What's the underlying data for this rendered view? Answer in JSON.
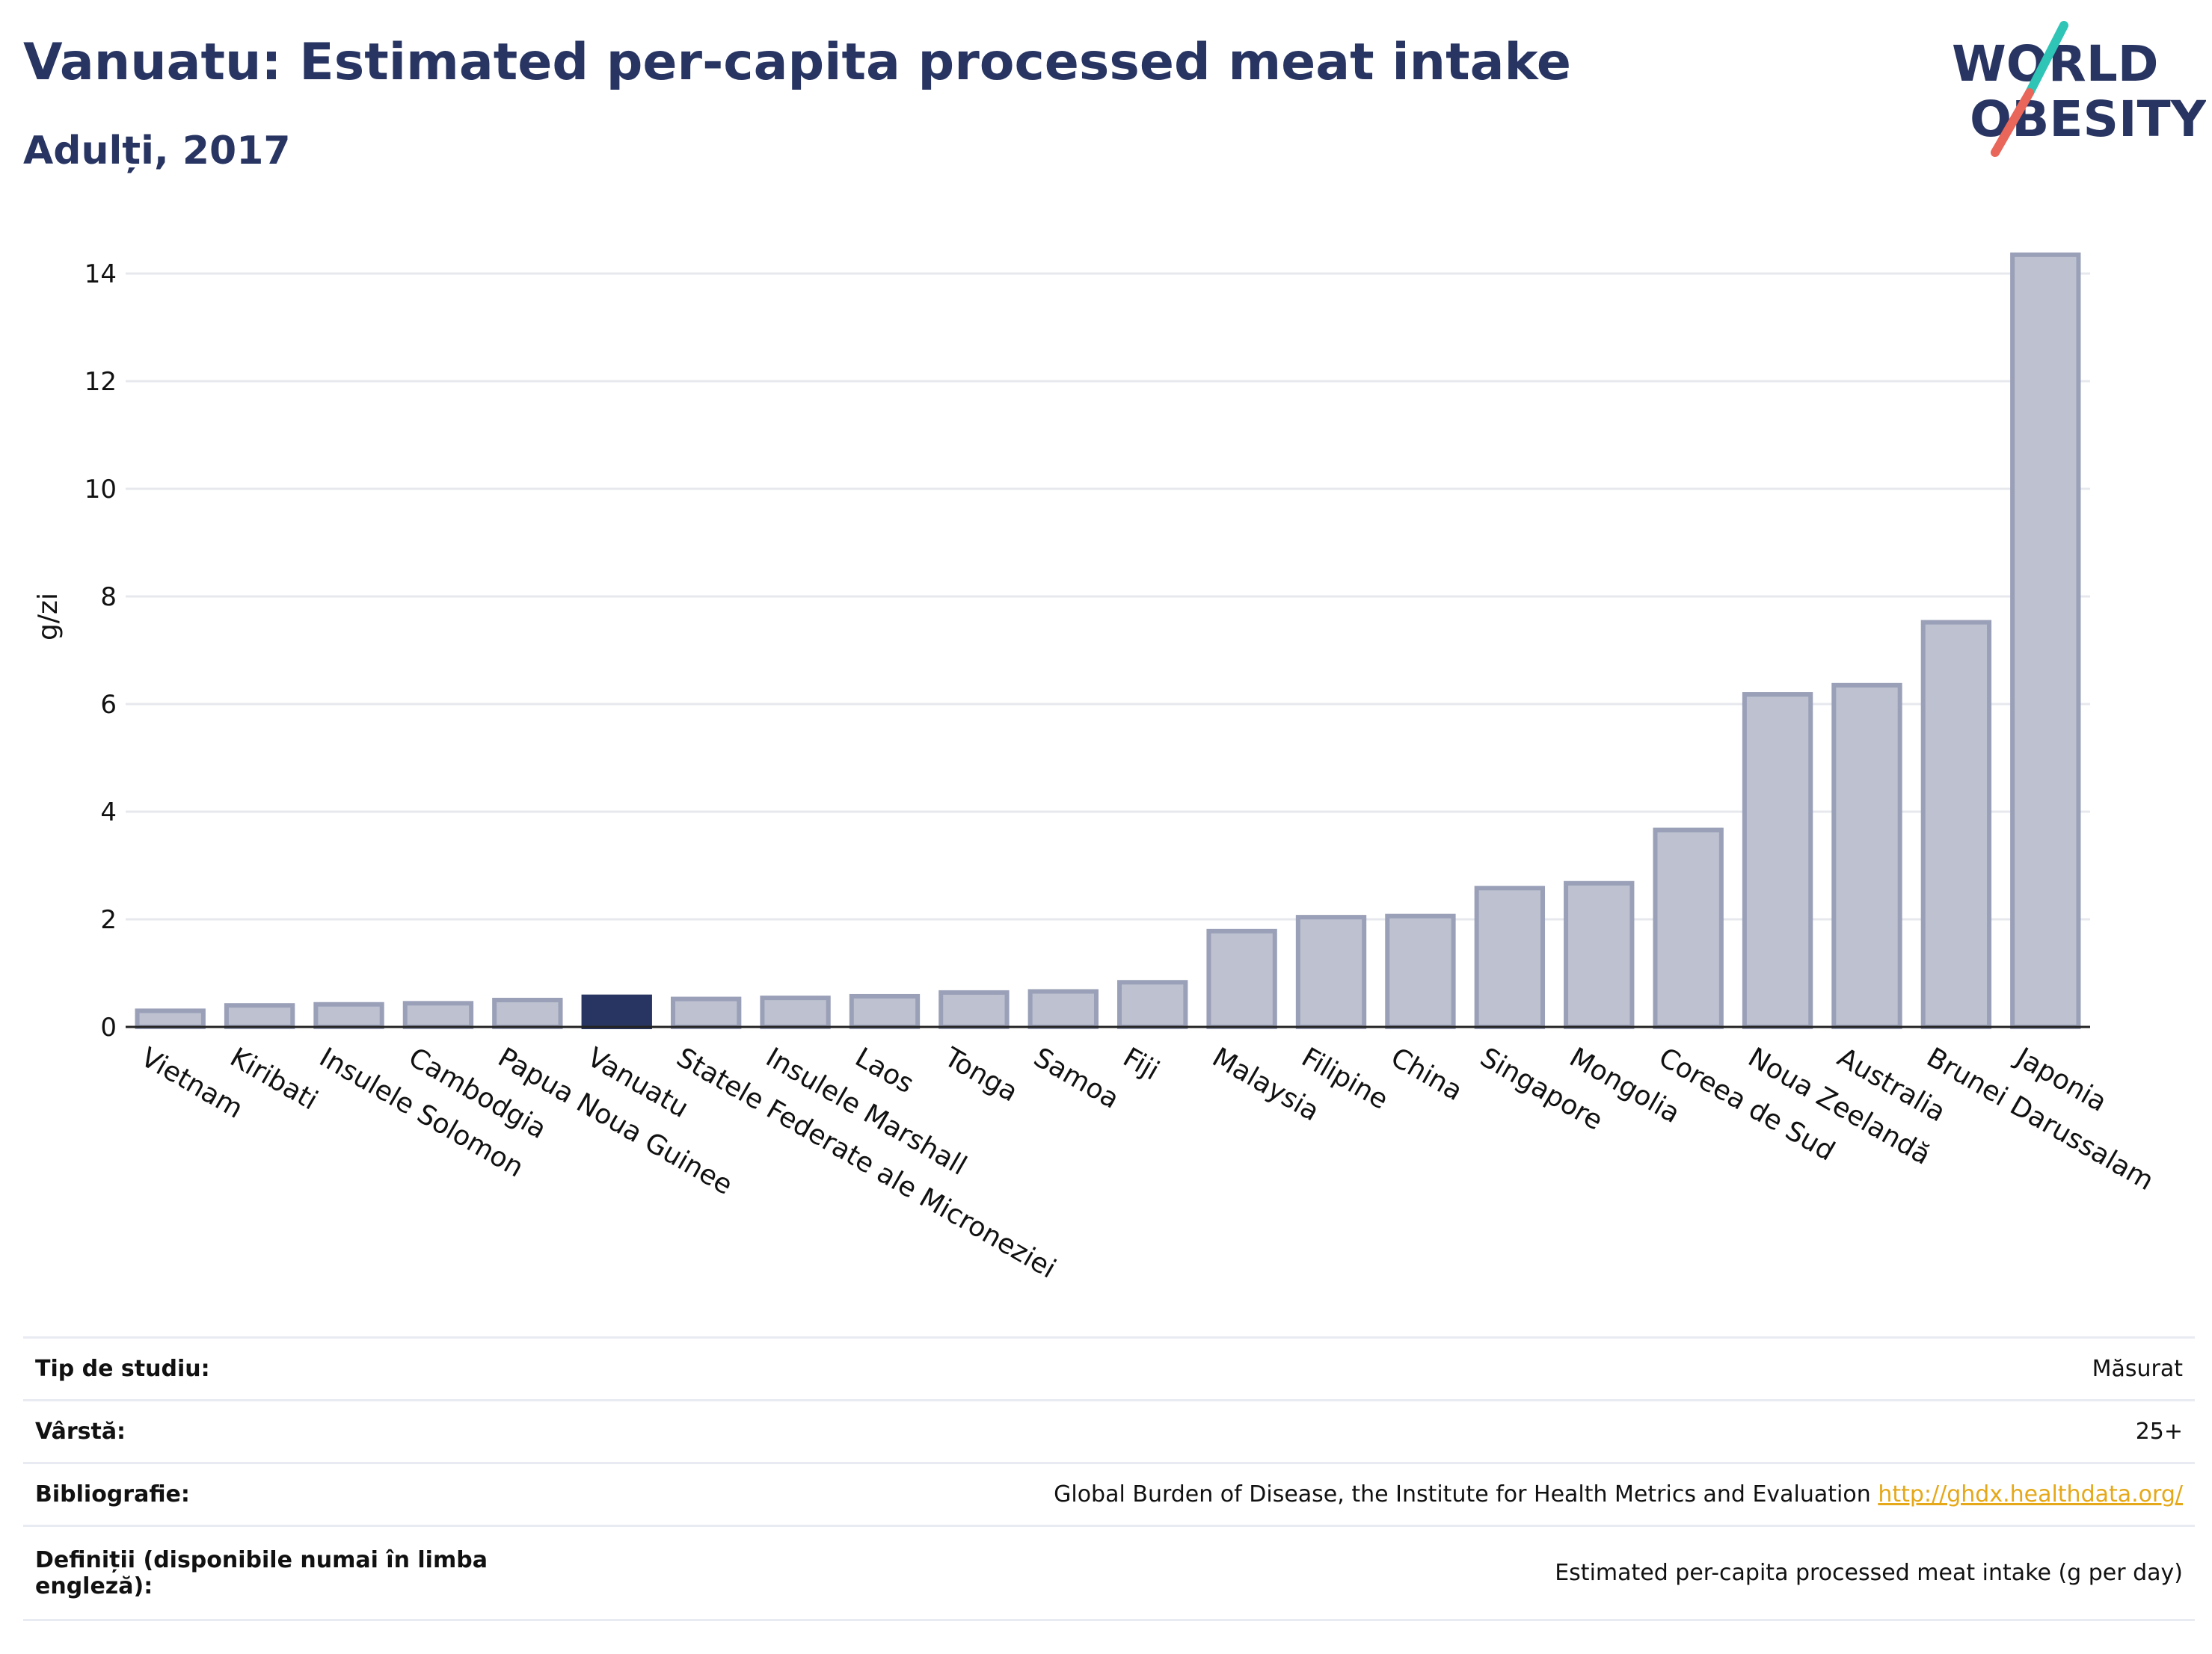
{
  "title": "Vanuatu: Estimated per-capita processed meat intake",
  "subtitle": "Adulți, 2017",
  "logo": {
    "line1": "WORLD",
    "line2": "OBESITY"
  },
  "colors": {
    "title": "#283562",
    "bar": "#bdc1d0",
    "bar_stroke": "#9aa0b8",
    "highlight": "#283562",
    "grid": "#e6e8ee",
    "link": "#e5a819",
    "logo_teal": "#2ec4b6",
    "logo_coral": "#e8665a"
  },
  "chart_data": {
    "type": "bar",
    "ylabel": "g/zi",
    "ylim": [
      0,
      14.5
    ],
    "yticks": [
      0,
      2,
      4,
      6,
      8,
      10,
      12,
      14
    ],
    "grid": true,
    "highlight": "Vanuatu",
    "categories": [
      "Vietnam",
      "Kiribati",
      "Insulele Solomon",
      "Cambodgia",
      "Papua Noua Guinee",
      "Vanuatu",
      "Statele Federate ale Microneziei",
      "Insulele Marshall",
      "Laos",
      "Tonga",
      "Samoa",
      "Fiji",
      "Malaysia",
      "Filipine",
      "China",
      "Singapore",
      "Mongolia",
      "Coreea de Sud",
      "Noua Zeelandă",
      "Australia",
      "Brunei Darussalam",
      "Japonia"
    ],
    "values": [
      0.3,
      0.4,
      0.42,
      0.44,
      0.5,
      0.56,
      0.52,
      0.54,
      0.57,
      0.64,
      0.66,
      0.83,
      1.78,
      2.04,
      2.06,
      2.58,
      2.67,
      3.66,
      6.18,
      6.35,
      7.52,
      14.35
    ]
  },
  "info": [
    {
      "key": "Tip de studiu:",
      "value": "Măsurat"
    },
    {
      "key": "Vârstă:",
      "value": "25+"
    },
    {
      "key": "Bibliografie:",
      "value": "Global Burden of Disease, the Institute for Health Metrics and Evaluation",
      "link": "http://ghdx.healthdata.org/"
    },
    {
      "key": "Definiții (disponibile numai în limba engleză):",
      "value": "Estimated per-capita processed meat intake (g per day)"
    }
  ]
}
